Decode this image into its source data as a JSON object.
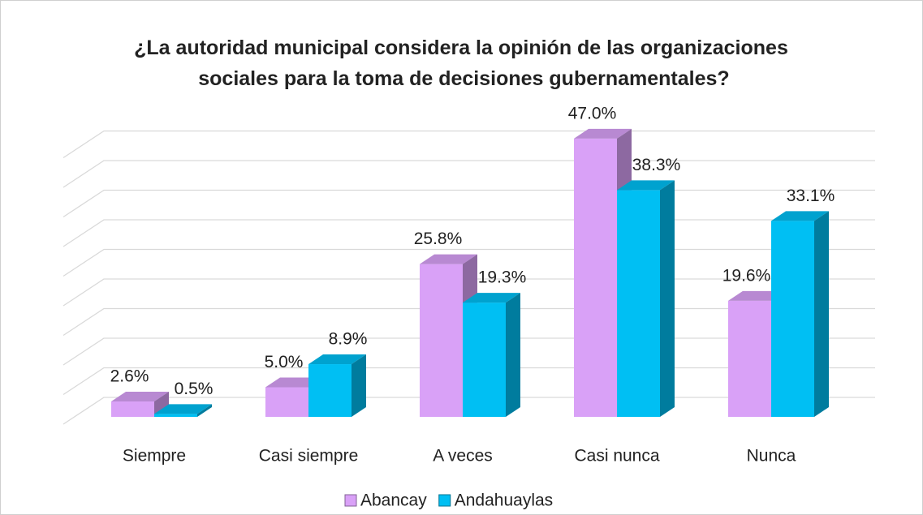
{
  "chart_data": {
    "type": "bar3d",
    "title": "¿La autoridad municipal considera la opinión de las organizaciones sociales para la toma de decisiones gubernamentales?",
    "categories": [
      "Siempre",
      "Casi siempre",
      "A veces",
      "Casi nunca",
      "Nunca"
    ],
    "series": [
      {
        "name": "Abancay",
        "color": "#d9a1f7",
        "values": [
          2.6,
          5.0,
          25.8,
          47.0,
          19.6
        ],
        "value_labels": [
          "2.6%",
          "5.0%",
          "25.8%",
          "47.0%",
          "19.6%"
        ]
      },
      {
        "name": "Andahuaylas",
        "color": "#00bff3",
        "values": [
          0.5,
          8.9,
          19.3,
          38.3,
          33.1
        ],
        "value_labels": [
          "0.5%",
          "8.9%",
          "19.3%",
          "38.3%",
          "33.1%"
        ]
      }
    ],
    "ylim": [
      0,
      45
    ],
    "yticks": [
      0,
      5,
      10,
      15,
      20,
      25,
      30,
      35,
      40,
      45
    ],
    "grid": true,
    "legend": "bottom"
  }
}
